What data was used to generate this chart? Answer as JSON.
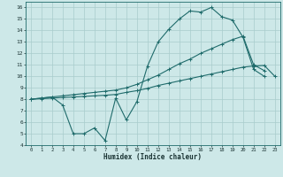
{
  "xlabel": "Humidex (Indice chaleur)",
  "xlim": [
    -0.5,
    23.5
  ],
  "ylim": [
    4,
    16.5
  ],
  "xticks": [
    0,
    1,
    2,
    3,
    4,
    5,
    6,
    7,
    8,
    9,
    10,
    11,
    12,
    13,
    14,
    15,
    16,
    17,
    18,
    19,
    20,
    21,
    22,
    23
  ],
  "yticks": [
    4,
    5,
    6,
    7,
    8,
    9,
    10,
    11,
    12,
    13,
    14,
    15,
    16
  ],
  "bg_color": "#cde8e8",
  "grid_color": "#a8cccc",
  "line_color": "#1f6b6b",
  "line1_x": [
    0,
    1,
    2,
    3,
    4,
    5,
    6,
    7,
    8,
    9,
    10,
    11,
    12,
    13,
    14,
    15,
    16,
    17,
    18,
    19,
    20,
    21,
    22
  ],
  "line1_y": [
    8.0,
    8.1,
    8.2,
    7.5,
    5.0,
    5.0,
    5.5,
    4.4,
    8.1,
    6.2,
    7.8,
    10.9,
    13.0,
    14.1,
    15.0,
    15.7,
    15.6,
    16.0,
    15.2,
    14.9,
    13.4,
    10.6,
    10.0
  ],
  "line2_x": [
    0,
    1,
    2,
    3,
    4,
    5,
    6,
    7,
    8,
    9,
    10,
    11,
    12,
    13,
    14,
    15,
    16,
    17,
    18,
    19,
    20,
    21,
    22
  ],
  "line2_y": [
    8.0,
    8.1,
    8.2,
    8.3,
    8.4,
    8.5,
    8.6,
    8.7,
    8.8,
    9.0,
    9.3,
    9.7,
    10.1,
    10.6,
    11.1,
    11.5,
    12.0,
    12.4,
    12.8,
    13.2,
    13.5,
    11.0,
    10.5
  ],
  "line3_x": [
    0,
    1,
    2,
    3,
    4,
    5,
    6,
    7,
    8,
    9,
    10,
    11,
    12,
    13,
    14,
    15,
    16,
    17,
    18,
    19,
    20,
    21,
    22,
    23
  ],
  "line3_y": [
    8.0,
    8.05,
    8.1,
    8.15,
    8.2,
    8.25,
    8.3,
    8.35,
    8.42,
    8.6,
    8.75,
    8.95,
    9.2,
    9.4,
    9.6,
    9.8,
    10.0,
    10.2,
    10.4,
    10.6,
    10.8,
    10.9,
    10.95,
    10.0
  ]
}
